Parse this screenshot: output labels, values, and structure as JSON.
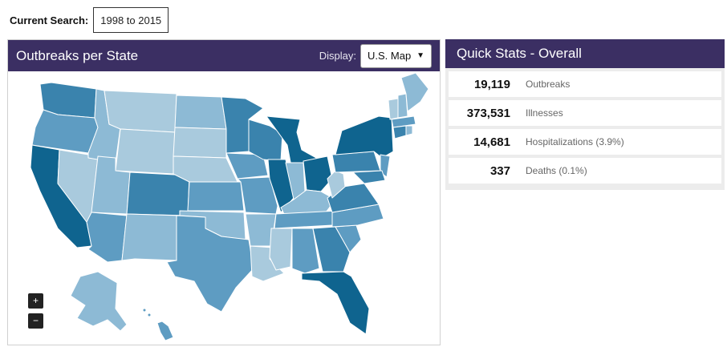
{
  "search": {
    "label": "Current Search:",
    "value": "1998 to 2015"
  },
  "map_panel": {
    "title": "Outbreaks per State",
    "display_label": "Display:",
    "display_value": "U.S. Map",
    "zoom_in": "+",
    "zoom_out": "−"
  },
  "stats_panel": {
    "title": "Quick Stats - Overall",
    "rows": [
      {
        "value": "19,119",
        "label": "Outbreaks"
      },
      {
        "value": "373,531",
        "label": "Illnesses"
      },
      {
        "value": "14,681",
        "label": "Hospitalizations (3.9%)"
      },
      {
        "value": "337",
        "label": "Deaths (0.1%)"
      }
    ]
  },
  "colors": {
    "header_bg": "#3b2f63",
    "shade_lightest": "#a9cadd",
    "shade_light": "#8dbad5",
    "shade_mid": "#5e9cc2",
    "shade_dark": "#3a83ad",
    "shade_darkest": "#0f648f"
  }
}
